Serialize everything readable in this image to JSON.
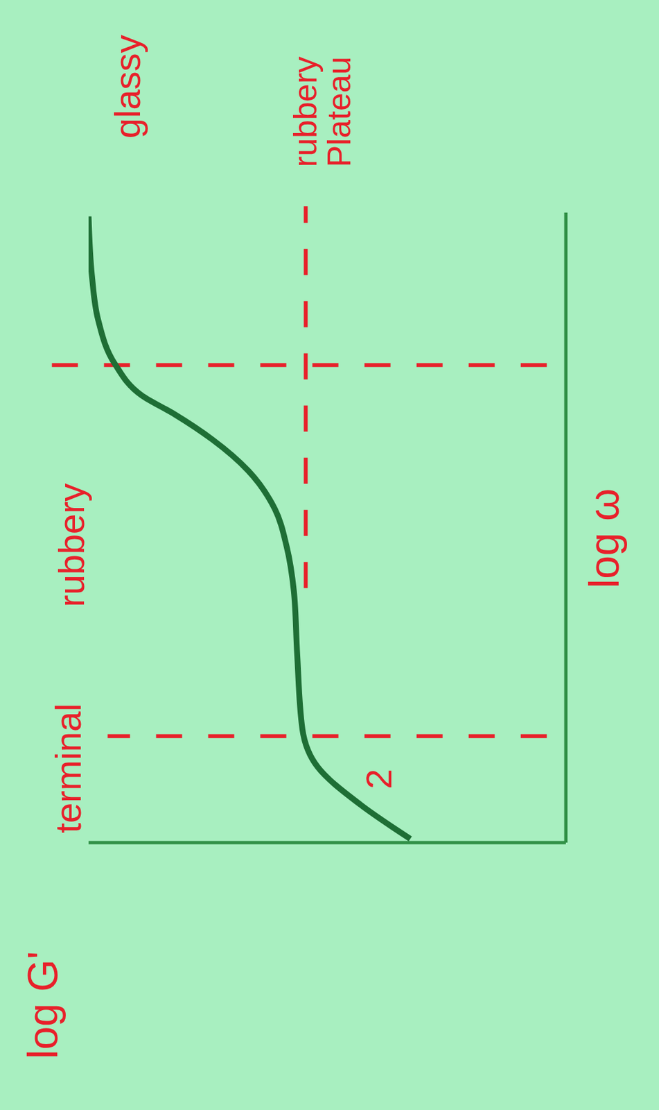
{
  "chart_data": {
    "type": "line",
    "xlabel": "log ω",
    "ylabel": "log G'",
    "x": [
      0.06,
      0.6,
      1.2,
      1.8,
      3.0,
      4.0,
      4.7,
      5.3,
      5.9,
      6.4,
      6.8,
      7.1,
      7.6,
      8.3,
      9.0,
      9.94
    ],
    "values": [
      3.26,
      4.3,
      5.2,
      5.52,
      5.63,
      5.7,
      5.85,
      6.1,
      6.65,
      7.41,
      8.2,
      8.89,
      9.45,
      9.8,
      9.93,
      10.0
    ],
    "color": "#1e6e35",
    "xlim": [
      0,
      10
    ],
    "ylim": [
      0,
      10
    ],
    "tick_labels": false,
    "grid": false,
    "line_style": "solid",
    "marker": "none",
    "annotations": [
      {
        "text": "glassy",
        "x": 12.0,
        "y": 9.19
      },
      {
        "text": "rubbery Plateau",
        "x": 11.6,
        "y": 5.1
      },
      {
        "text": "rubbery",
        "x": 4.72,
        "y": 10.37
      },
      {
        "text": "terminal",
        "x": 1.18,
        "y": 10.44
      },
      {
        "text": "2",
        "x": 1.01,
        "y": 3.93
      }
    ],
    "reference_lines": [
      {
        "x1": 1.69,
        "y1": 0.4,
        "x2": 1.69,
        "y2": 9.6
      },
      {
        "x1": 7.58,
        "y1": 0.4,
        "x2": 7.58,
        "y2": 11.3
      },
      {
        "x1": 4.04,
        "y1": 5.45,
        "x2": 10.1,
        "y2": 5.45
      }
    ]
  }
}
